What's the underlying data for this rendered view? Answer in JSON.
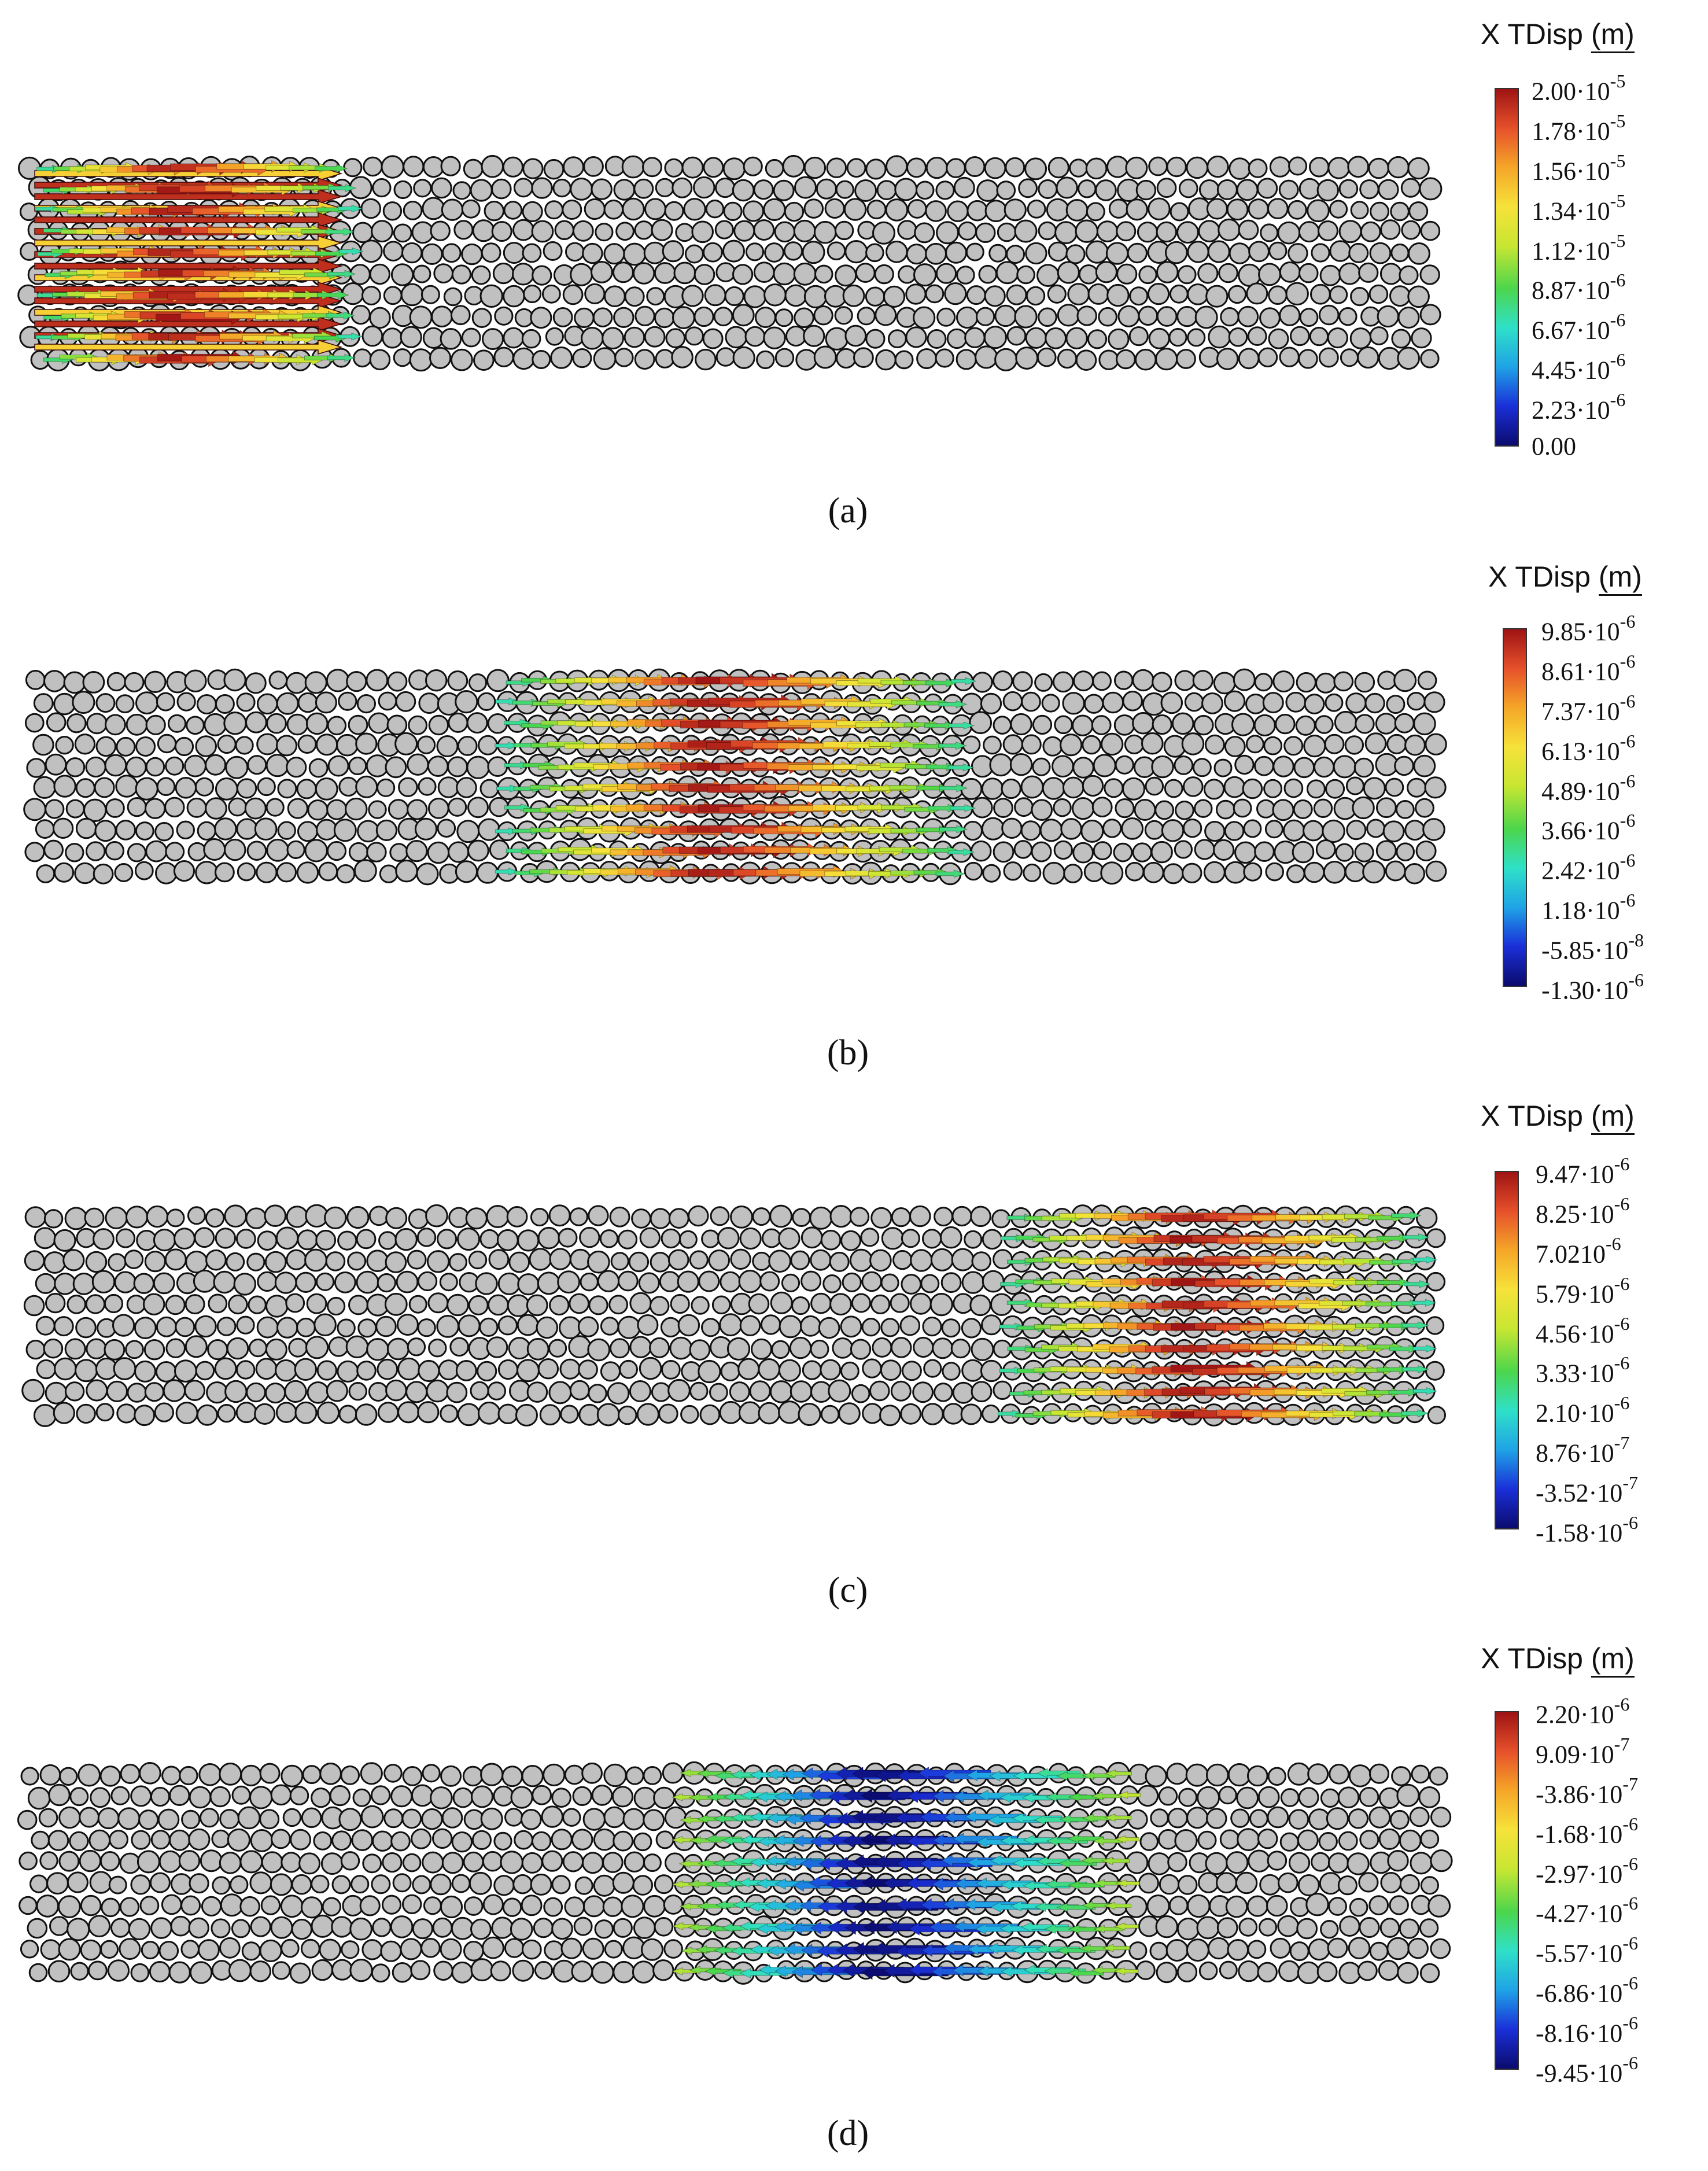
{
  "panels": [
    {
      "id": "a",
      "caption": "(a)",
      "legend": {
        "title": "X TDisp",
        "unit": "(m)",
        "ticks": [
          {
            "m": "2.00·10",
            "e": "-5"
          },
          {
            "m": "1.78·10",
            "e": "-5"
          },
          {
            "m": "1.56·10",
            "e": "-5"
          },
          {
            "m": "1.34·10",
            "e": "-5"
          },
          {
            "m": "1.12·10",
            "e": "-5"
          },
          {
            "m": "8.87·10",
            "e": "-6"
          },
          {
            "m": "6.67·10",
            "e": "-6"
          },
          {
            "m": "4.45·10",
            "e": "-6"
          },
          {
            "m": "2.23·10",
            "e": "-6"
          },
          {
            "m": "0.00",
            "e": ""
          }
        ]
      },
      "wave": {
        "center_frac": 0.12,
        "width_frac": 0.22,
        "polarity": "positive",
        "hot_color": "#e0403a"
      }
    },
    {
      "id": "b",
      "caption": "(b)",
      "legend": {
        "title": "X TDisp",
        "unit": "(m)",
        "ticks": [
          {
            "m": "9.85·10",
            "e": "-6"
          },
          {
            "m": "8.61·10",
            "e": "-6"
          },
          {
            "m": "7.37·10",
            "e": "-6"
          },
          {
            "m": "6.13·10",
            "e": "-6"
          },
          {
            "m": "4.89·10",
            "e": "-6"
          },
          {
            "m": "3.66·10",
            "e": "-6"
          },
          {
            "m": "2.42·10",
            "e": "-6"
          },
          {
            "m": "1.18·10",
            "e": "-6"
          },
          {
            "m": "-5.85·10",
            "e": "-8"
          },
          {
            "m": "-1.30·10",
            "e": "-6"
          }
        ]
      },
      "wave": {
        "center_frac": 0.5,
        "width_frac": 0.33,
        "polarity": "positive",
        "hot_color": "#e0403a"
      }
    },
    {
      "id": "c",
      "caption": "(c)",
      "legend": {
        "title": "X TDisp",
        "unit": "(m)",
        "ticks": [
          {
            "m": "9.47·10",
            "e": "-6"
          },
          {
            "m": "8.25·10",
            "e": "-6"
          },
          {
            "m": "7.0210",
            "e": "-6"
          },
          {
            "m": "5.79·10",
            "e": "-6"
          },
          {
            "m": "4.56·10",
            "e": "-6"
          },
          {
            "m": "3.33·10",
            "e": "-6"
          },
          {
            "m": "2.10·10",
            "e": "-6"
          },
          {
            "m": "8.76·10",
            "e": "-7"
          },
          {
            "m": "-3.52·10",
            "e": "-7"
          },
          {
            "m": "-1.58·10",
            "e": "-6"
          }
        ]
      },
      "wave": {
        "center_frac": 0.84,
        "width_frac": 0.3,
        "polarity": "positive",
        "hot_color": "#e0403a"
      }
    },
    {
      "id": "d",
      "caption": "(d)",
      "legend": {
        "title": "X TDisp",
        "unit": "(m)",
        "ticks": [
          {
            "m": "2.20·10",
            "e": "-6"
          },
          {
            "m": "9.09·10",
            "e": "-7"
          },
          {
            "m": "-3.86·10",
            "e": "-7"
          },
          {
            "m": "-1.68·10",
            "e": "-6"
          },
          {
            "m": "-2.97·10",
            "e": "-6"
          },
          {
            "m": "-4.27·10",
            "e": "-6"
          },
          {
            "m": "-5.57·10",
            "e": "-6"
          },
          {
            "m": "-6.86·10",
            "e": "-6"
          },
          {
            "m": "-8.16·10",
            "e": "-6"
          },
          {
            "m": "-9.45·10",
            "e": "-6"
          }
        ]
      },
      "wave": {
        "center_frac": 0.62,
        "width_frac": 0.32,
        "polarity": "negative",
        "hot_color": "#1a1fb8"
      }
    }
  ],
  "colors": {
    "particle_fill": "#c0c0c0",
    "particle_stroke": "#111111",
    "colormap": [
      "#0b0b6e",
      "#1a2fd8",
      "#1fa3e6",
      "#2fe0c8",
      "#4cd64c",
      "#c8e632",
      "#f6e23a",
      "#f5a628",
      "#e6502a",
      "#9e1414"
    ]
  }
}
